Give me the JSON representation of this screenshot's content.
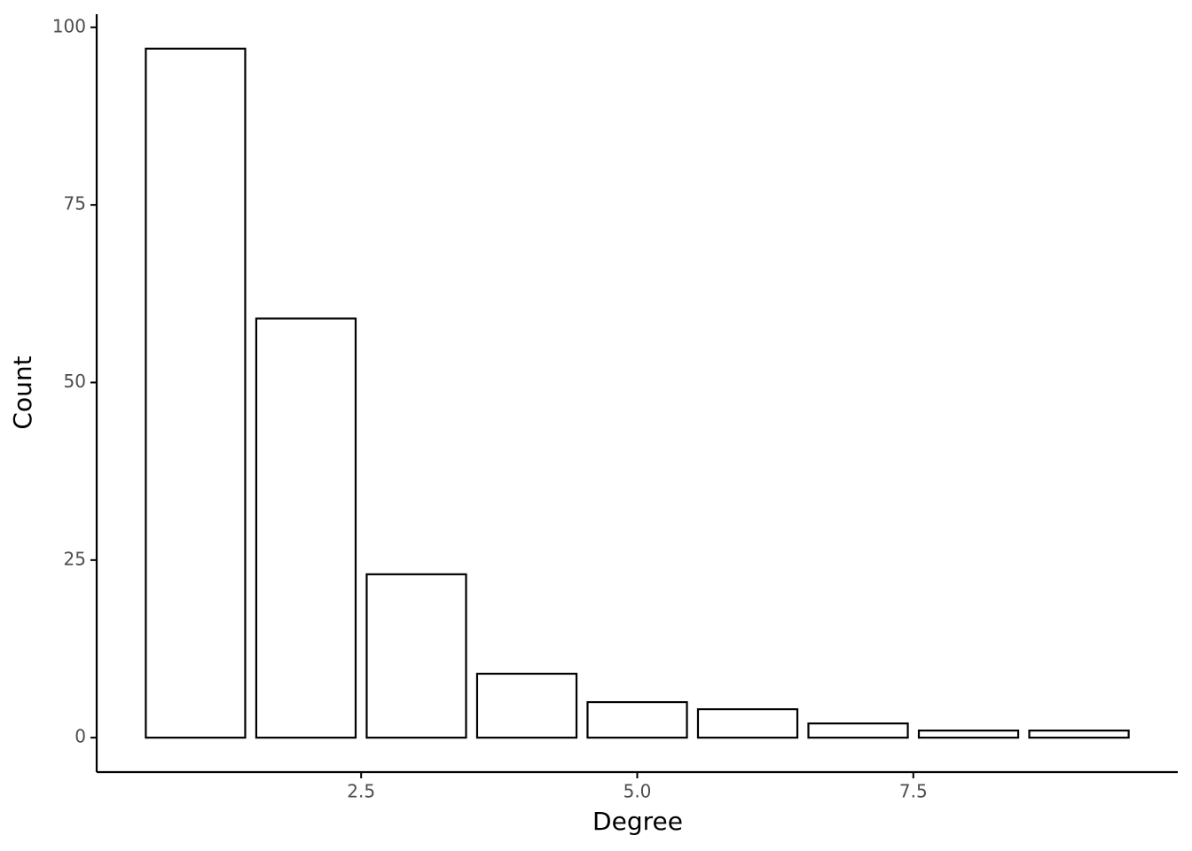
{
  "chart_data": {
    "type": "bar",
    "x": [
      1,
      2,
      3,
      4,
      5,
      6,
      7,
      8,
      9
    ],
    "values": [
      97,
      59,
      23,
      9,
      5,
      4,
      2,
      1,
      1
    ],
    "color": "#ffffff",
    "edgecolor": "#000000",
    "x_label": "Degree",
    "y_label": "Count",
    "xlim": [
      0.105,
      9.895
    ],
    "xticks": [
      2.5,
      {
        "value": 5,
        "label": "5.0"
      },
      7.5
    ],
    "ylim": [
      -4.85,
      101.85
    ],
    "yticks": [
      0,
      25,
      50,
      75,
      100
    ],
    "grid": false
  }
}
